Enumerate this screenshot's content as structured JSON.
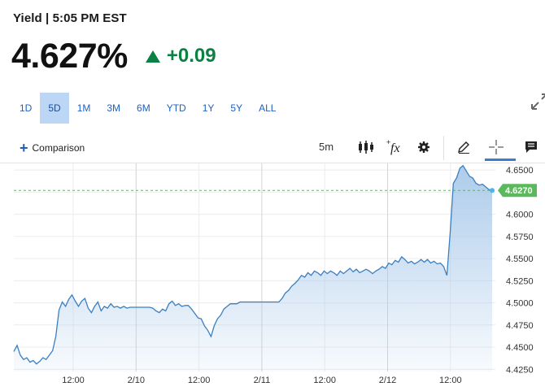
{
  "header": {
    "title": "Yield | 5:05 PM EST"
  },
  "quote": {
    "value": "4.627%",
    "change": "+0.09",
    "direction": "up",
    "change_color": "#0b8043"
  },
  "range_tabs": [
    {
      "label": "1D",
      "active": false
    },
    {
      "label": "5D",
      "active": true
    },
    {
      "label": "1M",
      "active": false
    },
    {
      "label": "3M",
      "active": false
    },
    {
      "label": "6M",
      "active": false
    },
    {
      "label": "YTD",
      "active": false
    },
    {
      "label": "1Y",
      "active": false
    },
    {
      "label": "5Y",
      "active": false
    },
    {
      "label": "ALL",
      "active": false
    }
  ],
  "toolbar": {
    "comparison_label": "Comparison",
    "interval_label": "5m",
    "icons": [
      "candlestick-icon",
      "indicators-fx-icon",
      "settings-gear-icon",
      "draw-pencil-icon",
      "crosshair-icon",
      "annotation-icon"
    ]
  },
  "chart_data": {
    "type": "area",
    "title": "",
    "xlabel": "",
    "ylabel": "",
    "x_tick_labels": [
      "12:00",
      "2/10",
      "12:00",
      "2/11",
      "12:00",
      "2/12",
      "12:00"
    ],
    "y_tick_labels": [
      "4.6500",
      "4.6250",
      "4.6000",
      "4.5750",
      "4.5500",
      "4.5250",
      "4.5000",
      "4.4750",
      "4.4500",
      "4.4250"
    ],
    "ylim": [
      4.4225,
      4.6575
    ],
    "last_value_label": "4.6270",
    "last_value": 4.627,
    "line_color": "#3a7fc1",
    "fill_color": "#a9c9ea",
    "label_color": "#5cb85c",
    "grid": true,
    "series": [
      {
        "values": [
          4.445,
          4.452,
          4.441,
          4.436,
          4.438,
          4.433,
          4.435,
          4.431,
          4.434,
          4.438,
          4.436,
          4.441,
          4.446,
          4.462,
          4.492,
          4.501,
          4.496,
          4.504,
          4.509,
          4.502,
          4.496,
          4.502,
          4.505,
          4.494,
          4.489,
          4.496,
          4.501,
          4.491,
          4.496,
          4.494,
          4.499,
          4.495,
          4.496,
          4.494,
          4.496,
          4.494,
          4.495,
          4.495,
          4.495,
          4.495,
          4.495,
          4.495,
          4.495,
          4.494,
          4.491,
          4.489,
          4.493,
          4.491,
          4.499,
          4.502,
          4.497,
          4.499,
          4.496,
          4.497,
          4.497,
          4.493,
          4.488,
          4.483,
          4.482,
          4.474,
          4.469,
          4.462,
          4.474,
          4.482,
          4.486,
          4.493,
          4.496,
          4.499,
          4.499,
          4.499,
          4.501,
          4.501,
          4.501,
          4.501,
          4.501,
          4.501,
          4.501,
          4.501,
          4.501,
          4.501,
          4.501,
          4.501,
          4.501,
          4.505,
          4.511,
          4.514,
          4.519,
          4.522,
          4.526,
          4.531,
          4.529,
          4.534,
          4.531,
          4.536,
          4.534,
          4.531,
          4.536,
          4.533,
          4.536,
          4.534,
          4.531,
          4.536,
          4.533,
          4.536,
          4.539,
          4.535,
          4.538,
          4.534,
          4.536,
          4.538,
          4.536,
          4.533,
          4.536,
          4.538,
          4.541,
          4.539,
          4.545,
          4.543,
          4.548,
          4.546,
          4.552,
          4.549,
          4.545,
          4.547,
          4.544,
          4.546,
          4.549,
          4.546,
          4.549,
          4.545,
          4.547,
          4.544,
          4.545,
          4.541,
          4.531,
          4.579,
          4.635,
          4.641,
          4.652,
          4.655,
          4.649,
          4.643,
          4.641,
          4.635,
          4.633,
          4.634,
          4.631,
          4.628,
          4.627
        ]
      }
    ]
  }
}
